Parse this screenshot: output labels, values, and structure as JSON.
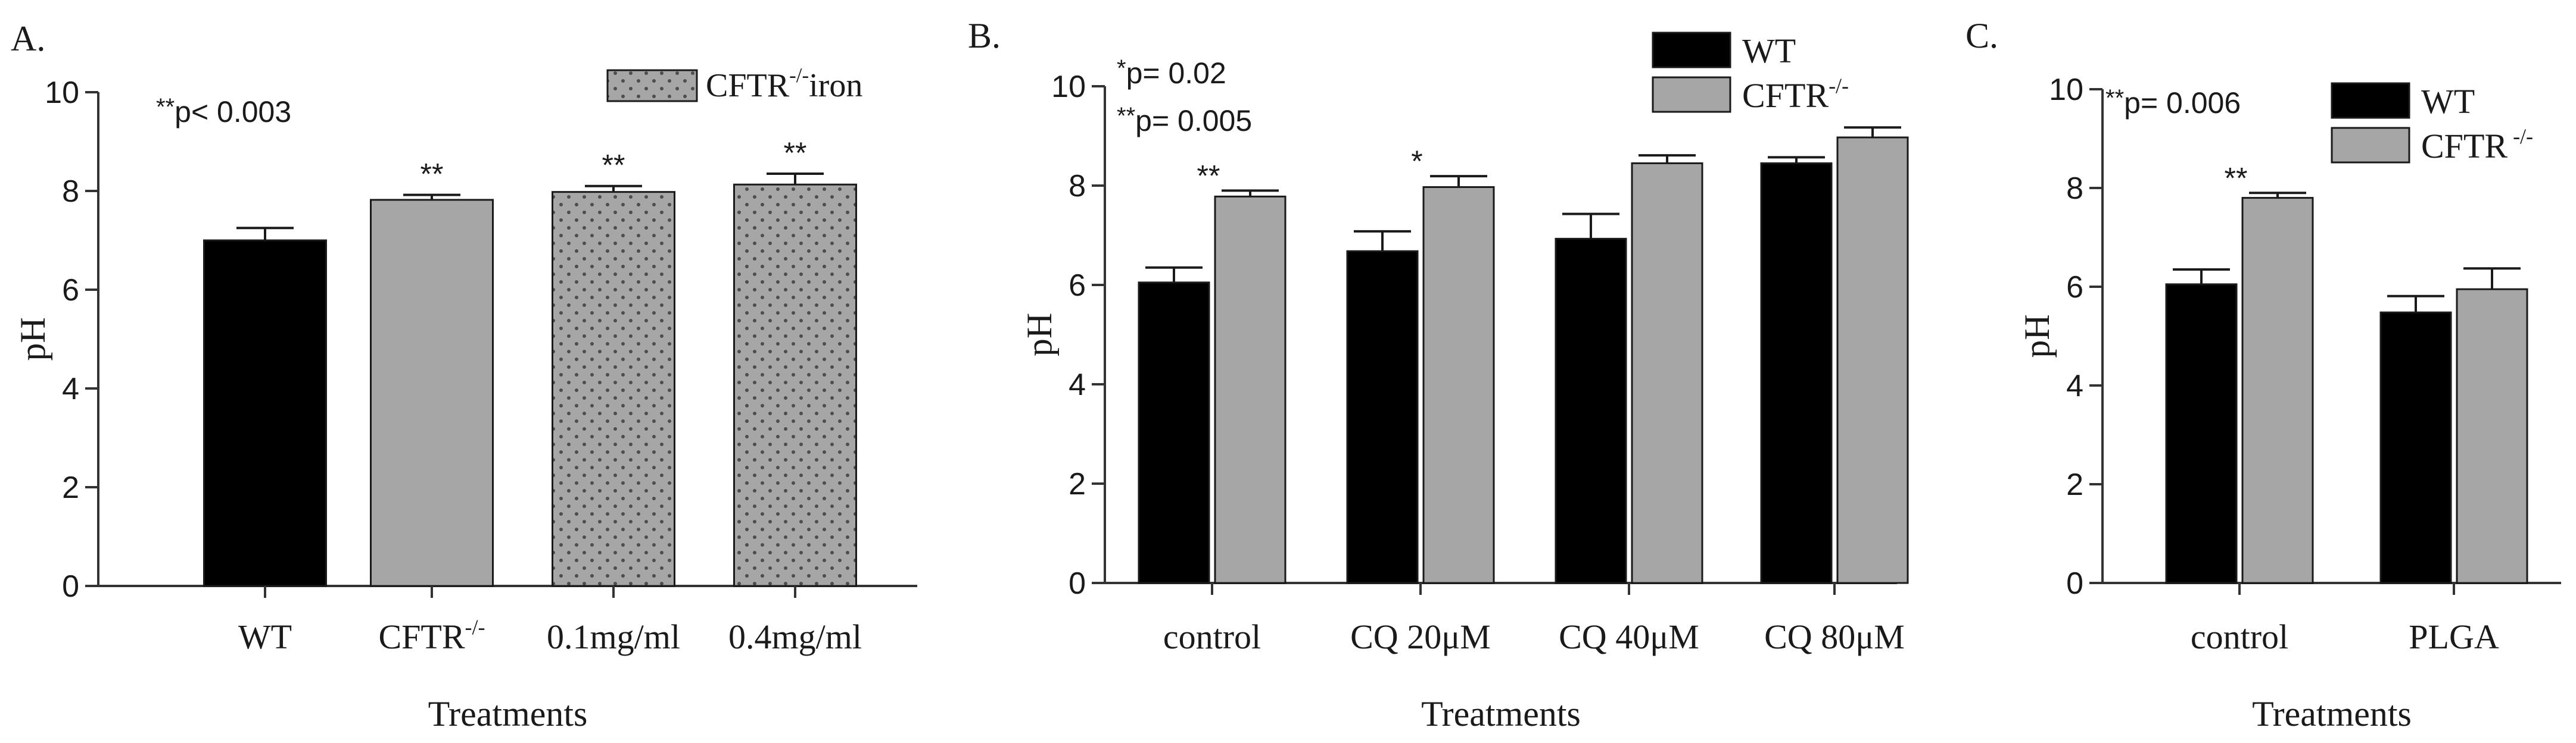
{
  "colors": {
    "wt": "#000000",
    "ko": "#a6a6a6",
    "axis": "#333333",
    "dots": "#4d4d4d"
  },
  "chart_data": [
    {
      "panel_label": "A.",
      "type": "bar",
      "ylabel": "pH",
      "xlabel": "Treatments",
      "ylim": [
        0,
        10
      ],
      "yticks": [
        "0",
        "2",
        "4",
        "6",
        "8",
        "10"
      ],
      "categories": [
        "WT",
        "CFTR",
        "0.1mg/ml",
        "0.4mg/ml"
      ],
      "category_superscripts": [
        "",
        "-/-",
        "",
        ""
      ],
      "bars": [
        {
          "value": 7.0,
          "error": 0.25,
          "color": "#000000",
          "pattern": false,
          "sig": ""
        },
        {
          "value": 7.82,
          "error": 0.1,
          "color": "#a6a6a6",
          "pattern": false,
          "sig": "**"
        },
        {
          "value": 7.98,
          "error": 0.12,
          "color": "#a6a6a6",
          "pattern": true,
          "sig": "**"
        },
        {
          "value": 8.13,
          "error": 0.22,
          "color": "#a6a6a6",
          "pattern": true,
          "sig": "**"
        }
      ],
      "legend": {
        "label": "CFTR",
        "superscript": "-/-",
        "suffix": "iron",
        "position": "top-right"
      },
      "annotations": [
        {
          "stars": "**",
          "text": "p< 0.003"
        }
      ]
    },
    {
      "panel_label": "B.",
      "type": "bar",
      "ylabel": "pH",
      "xlabel": "Treatments",
      "ylim": [
        0,
        10
      ],
      "yticks": [
        "0",
        "2",
        "4",
        "6",
        "8",
        "10"
      ],
      "categories": [
        "control",
        "CQ 20μM",
        "CQ 40μM",
        "CQ 80μM"
      ],
      "series": [
        {
          "name": "WT",
          "superscript": "",
          "color": "#000000",
          "values": [
            6.05,
            6.68,
            6.93,
            8.45
          ],
          "errors": [
            0.3,
            0.4,
            0.5,
            0.12
          ],
          "sig": [
            "",
            "",
            "",
            ""
          ]
        },
        {
          "name": "CFTR",
          "superscript": "-/-",
          "color": "#a6a6a6",
          "values": [
            7.78,
            7.97,
            8.45,
            8.97
          ],
          "errors": [
            0.12,
            0.22,
            0.16,
            0.2
          ],
          "sig": [
            "**",
            "*",
            "",
            ""
          ]
        }
      ],
      "legend": {
        "position": "top-right"
      },
      "annotations": [
        {
          "stars": "*",
          "text": "p= 0.02"
        },
        {
          "stars": "**",
          "text": "p= 0.005"
        }
      ]
    },
    {
      "panel_label": "C.",
      "type": "bar",
      "ylabel": "pH",
      "xlabel": "Treatments",
      "ylim": [
        0,
        10
      ],
      "yticks": [
        "0",
        "2",
        "4",
        "6",
        "8",
        "10"
      ],
      "categories": [
        "control",
        "PLGA"
      ],
      "series": [
        {
          "name": "WT",
          "superscript": "",
          "color": "#000000",
          "values": [
            6.05,
            5.48
          ],
          "errors": [
            0.3,
            0.33
          ],
          "sig": [
            "",
            ""
          ]
        },
        {
          "name": "CFTR",
          "superscript": " -/-",
          "color": "#a6a6a6",
          "values": [
            7.8,
            5.95
          ],
          "errors": [
            0.1,
            0.42
          ],
          "sig": [
            "**",
            ""
          ]
        }
      ],
      "legend": {
        "position": "top-right"
      },
      "annotations": [
        {
          "stars": "**",
          "text": "p= 0.006"
        }
      ]
    }
  ]
}
